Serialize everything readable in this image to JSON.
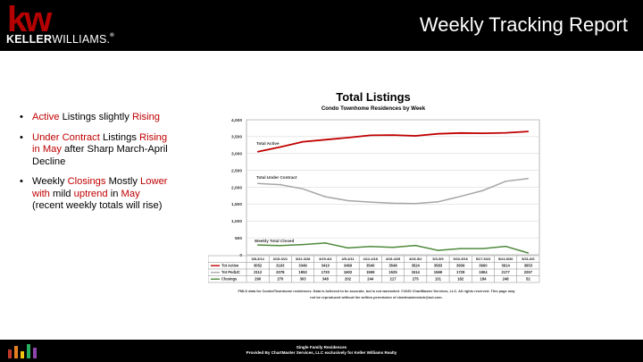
{
  "header": {
    "title": "Weekly Tracking Report",
    "logo_mark": "kw",
    "logo_word_bold": "KELLER",
    "logo_word_light": "WILLIAMS.",
    "logo_word_reg": "®",
    "colors": {
      "background": "#000000",
      "logo_red": "#b40101",
      "text": "#ffffff"
    }
  },
  "bullets": [
    {
      "segments": [
        {
          "text": "Active",
          "red": true
        },
        {
          "text": " Listings slightly ",
          "red": false
        },
        {
          "text": "Rising",
          "red": true
        }
      ]
    },
    {
      "segments": [
        {
          "text": "Under Contract",
          "red": true
        },
        {
          "text": " Listings ",
          "red": false
        },
        {
          "text": "Rising in May",
          "red": true
        },
        {
          "text": " after Sharp March-April Decline",
          "red": false
        }
      ]
    },
    {
      "segments": [
        {
          "text": "Weekly ",
          "red": false
        },
        {
          "text": "Closings",
          "red": true
        },
        {
          "text": " Mostly ",
          "red": false
        },
        {
          "text": "Lower with",
          "red": true
        },
        {
          "text": " mild ",
          "red": false
        },
        {
          "text": "uptrend",
          "red": true
        },
        {
          "text": " in ",
          "red": false
        },
        {
          "text": "May",
          "red": true
        },
        {
          "text": " (recent weekly totals will rise)",
          "red": false
        }
      ]
    }
  ],
  "chart_data": {
    "type": "line",
    "title": "Total Listings",
    "subtitle": "Condo Townhome Residences by Week",
    "categories": [
      "3/8-3/14",
      "3/15-3/21",
      "3/22-3/28",
      "3/29-4/4",
      "4/5-4/11",
      "4/12-4/18",
      "4/19-4/25",
      "4/26-5/2",
      "5/3-5/9",
      "5/10-5/16",
      "5/17-5/23",
      "5/24-5/30",
      "5/31-6/6"
    ],
    "ylim": [
      0,
      4000
    ],
    "yticks": [
      "0",
      "500",
      "1,000",
      "1,500",
      "2,000",
      "2,500",
      "3,000",
      "3,500",
      "4,000"
    ],
    "grid": true,
    "series": [
      {
        "name": "Tot Active",
        "line_label": "Total Active",
        "color": "#c00000",
        "values": [
          3052,
          3193,
          3349,
          3410,
          3469,
          3540,
          3548,
          3524,
          3583,
          3609,
          3600,
          3614,
          3653
        ]
      },
      {
        "name": "Tot PndUC",
        "line_label": "Total Under Contract",
        "color": "#a6a6a6",
        "values": [
          2112,
          2078,
          1953,
          1720,
          1602,
          1559,
          1525,
          1514,
          1569,
          1729,
          1904,
          2177,
          2257
        ]
      },
      {
        "name": "Closings",
        "line_label": "Weekly Total Closed",
        "color": "#4f8a3c",
        "values": [
          290,
          270,
          303,
          348,
          202,
          244,
          217,
          275,
          131,
          182,
          184,
          248,
          52
        ]
      }
    ],
    "footnote_lines": [
      "FMLS data for Condo/Townhome residences. Data is believed to be accurate, but is not warranted.  ©2020 ChartMaster Services, LLC. All rights reserved. This page may",
      "not be reproduced without the written permission of chartmasterclark@aol.com."
    ]
  },
  "footer": {
    "line1": "Single Family Residences",
    "line2": "Provided By ChartMaster Services, LLC exclusively for Keller Williams Realty",
    "logo_bar_colors": [
      "#c0392b",
      "#e67e22",
      "#f1c40f",
      "#27ae60",
      "#8e44ad"
    ]
  }
}
